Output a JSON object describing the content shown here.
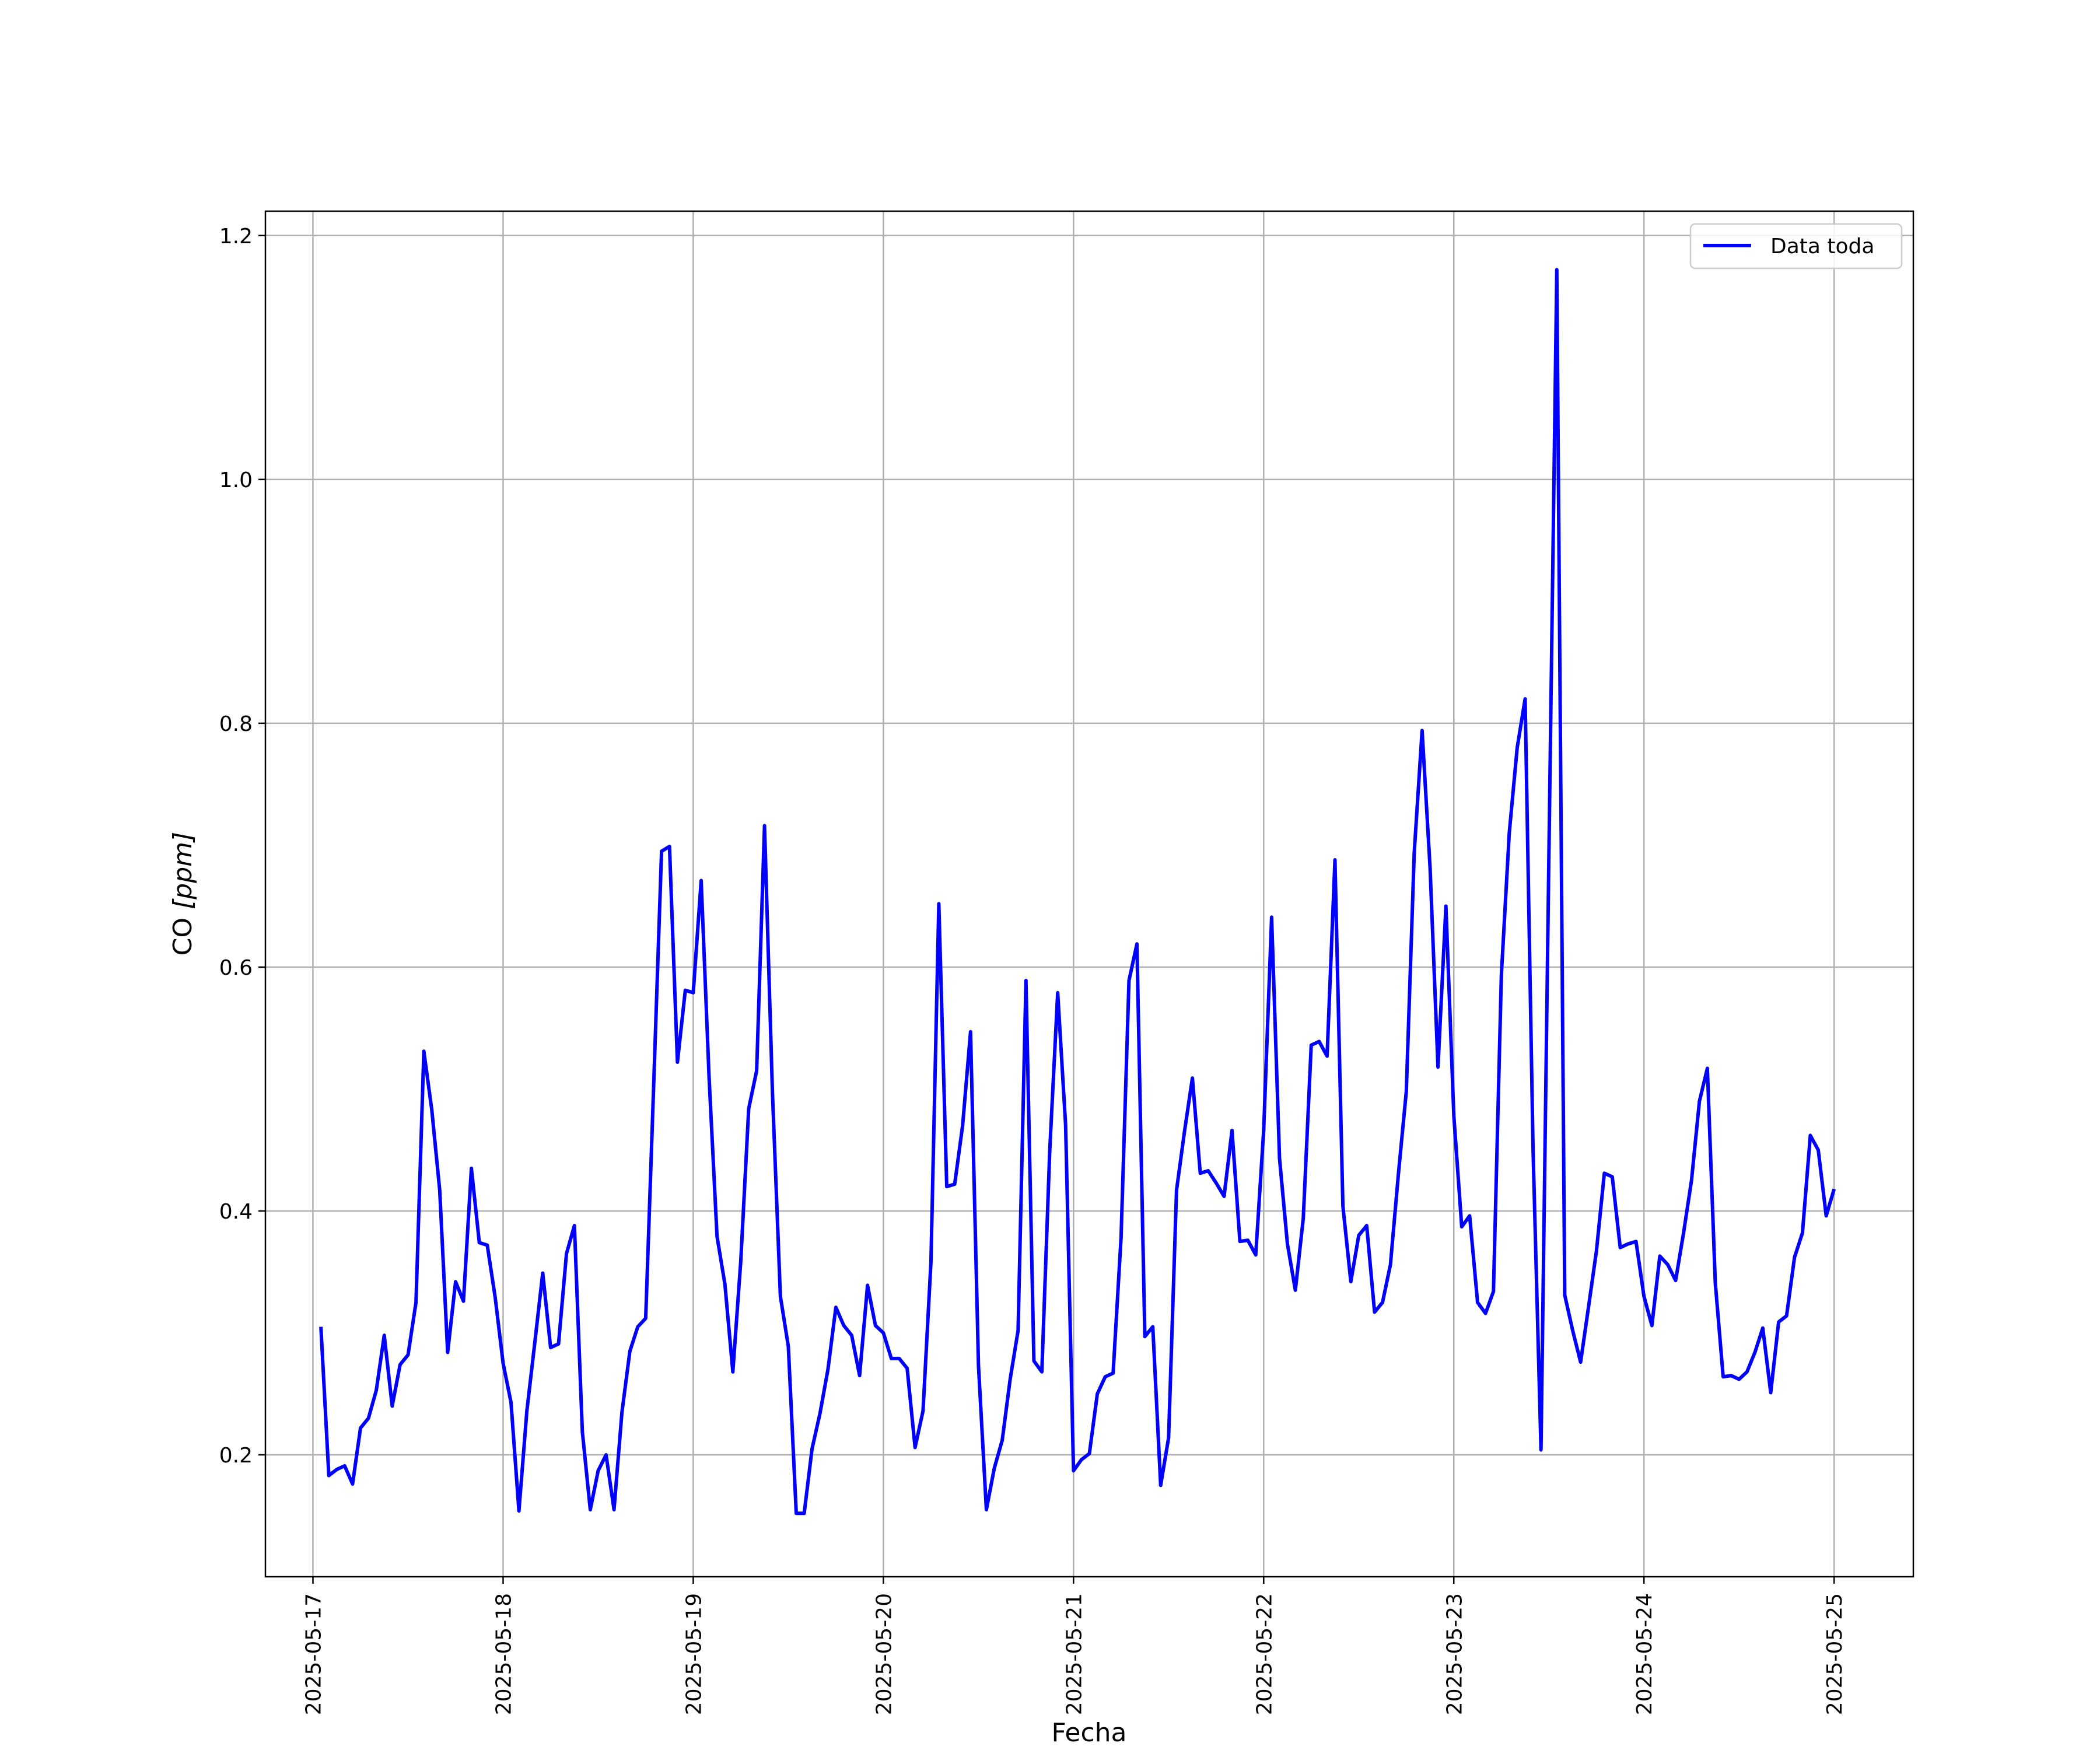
{
  "chart_data": {
    "type": "line",
    "title": "",
    "xlabel": "Fecha",
    "ylabel": "CO [ppm]",
    "ylabel_parts": {
      "plain": "CO ",
      "unit": "[ppm]"
    },
    "xlim": [
      "2025-05-16T18:00",
      "2025-05-25T10:00"
    ],
    "ylim": [
      0.1,
      1.22
    ],
    "x_ticks": [
      "2025-05-17",
      "2025-05-18",
      "2025-05-19",
      "2025-05-20",
      "2025-05-21",
      "2025-05-22",
      "2025-05-23",
      "2025-05-24",
      "2025-05-25"
    ],
    "y_ticks": [
      0.2,
      0.4,
      0.6,
      0.8,
      1.0,
      1.2
    ],
    "y_tick_labels": [
      "0.2",
      "0.4",
      "0.6",
      "0.8",
      "1.0",
      "1.2"
    ],
    "grid": true,
    "legend_position": "top-right",
    "series": [
      {
        "name": "Data toda",
        "color": "#0000ff",
        "x": [
          "2025-05-17T01:00",
          "2025-05-17T02:00",
          "2025-05-17T03:00",
          "2025-05-17T04:00",
          "2025-05-17T05:00",
          "2025-05-17T06:00",
          "2025-05-17T07:00",
          "2025-05-17T08:00",
          "2025-05-17T09:00",
          "2025-05-17T10:00",
          "2025-05-17T11:00",
          "2025-05-17T12:00",
          "2025-05-17T13:00",
          "2025-05-17T14:00",
          "2025-05-17T15:00",
          "2025-05-17T16:00",
          "2025-05-17T17:00",
          "2025-05-17T18:00",
          "2025-05-17T19:00",
          "2025-05-17T20:00",
          "2025-05-17T21:00",
          "2025-05-17T22:00",
          "2025-05-17T23:00",
          "2025-05-18T00:00",
          "2025-05-18T01:00",
          "2025-05-18T02:00",
          "2025-05-18T03:00",
          "2025-05-18T04:00",
          "2025-05-18T05:00",
          "2025-05-18T06:00",
          "2025-05-18T07:00",
          "2025-05-18T08:00",
          "2025-05-18T09:00",
          "2025-05-18T10:00",
          "2025-05-18T11:00",
          "2025-05-18T12:00",
          "2025-05-18T13:00",
          "2025-05-18T14:00",
          "2025-05-18T15:00",
          "2025-05-18T16:00",
          "2025-05-18T17:00",
          "2025-05-18T18:00",
          "2025-05-18T19:00",
          "2025-05-18T20:00",
          "2025-05-18T21:00",
          "2025-05-18T22:00",
          "2025-05-18T23:00",
          "2025-05-19T00:00",
          "2025-05-19T01:00",
          "2025-05-19T02:00",
          "2025-05-19T03:00",
          "2025-05-19T04:00",
          "2025-05-19T05:00",
          "2025-05-19T06:00",
          "2025-05-19T07:00",
          "2025-05-19T08:00",
          "2025-05-19T09:00",
          "2025-05-19T10:00",
          "2025-05-19T11:00",
          "2025-05-19T12:00",
          "2025-05-19T13:00",
          "2025-05-19T14:00",
          "2025-05-19T15:00",
          "2025-05-19T16:00",
          "2025-05-19T17:00",
          "2025-05-19T18:00",
          "2025-05-19T19:00",
          "2025-05-19T20:00",
          "2025-05-19T21:00",
          "2025-05-19T22:00",
          "2025-05-19T23:00",
          "2025-05-20T00:00",
          "2025-05-20T01:00",
          "2025-05-20T02:00",
          "2025-05-20T03:00",
          "2025-05-20T04:00",
          "2025-05-20T05:00",
          "2025-05-20T06:00",
          "2025-05-20T07:00",
          "2025-05-20T08:00",
          "2025-05-20T09:00",
          "2025-05-20T10:00",
          "2025-05-20T11:00",
          "2025-05-20T12:00",
          "2025-05-20T13:00",
          "2025-05-20T14:00",
          "2025-05-20T15:00",
          "2025-05-20T16:00",
          "2025-05-20T17:00",
          "2025-05-20T18:00",
          "2025-05-20T19:00",
          "2025-05-20T20:00",
          "2025-05-20T21:00",
          "2025-05-20T22:00",
          "2025-05-20T23:00",
          "2025-05-21T00:00",
          "2025-05-21T01:00",
          "2025-05-21T02:00",
          "2025-05-21T03:00",
          "2025-05-21T04:00",
          "2025-05-21T05:00",
          "2025-05-21T06:00",
          "2025-05-21T07:00",
          "2025-05-21T08:00",
          "2025-05-21T09:00",
          "2025-05-21T10:00",
          "2025-05-21T11:00",
          "2025-05-21T12:00",
          "2025-05-21T13:00",
          "2025-05-21T14:00",
          "2025-05-21T15:00",
          "2025-05-21T16:00",
          "2025-05-21T17:00",
          "2025-05-21T18:00",
          "2025-05-21T19:00",
          "2025-05-21T20:00",
          "2025-05-21T21:00",
          "2025-05-21T22:00",
          "2025-05-21T23:00",
          "2025-05-22T00:00",
          "2025-05-22T01:00",
          "2025-05-22T02:00",
          "2025-05-22T03:00",
          "2025-05-22T04:00",
          "2025-05-22T05:00",
          "2025-05-22T06:00",
          "2025-05-22T07:00",
          "2025-05-22T08:00",
          "2025-05-22T09:00",
          "2025-05-22T10:00",
          "2025-05-22T11:00",
          "2025-05-22T12:00",
          "2025-05-22T13:00",
          "2025-05-22T14:00",
          "2025-05-22T15:00",
          "2025-05-22T16:00",
          "2025-05-22T17:00",
          "2025-05-22T18:00",
          "2025-05-22T19:00",
          "2025-05-22T20:00",
          "2025-05-22T21:00",
          "2025-05-22T22:00",
          "2025-05-22T23:00",
          "2025-05-23T00:00",
          "2025-05-23T01:00",
          "2025-05-23T02:00",
          "2025-05-23T03:00",
          "2025-05-23T04:00",
          "2025-05-23T05:00",
          "2025-05-23T06:00",
          "2025-05-23T07:00",
          "2025-05-23T08:00",
          "2025-05-23T09:00",
          "2025-05-23T10:00",
          "2025-05-23T11:00",
          "2025-05-23T12:00",
          "2025-05-23T13:00",
          "2025-05-23T14:00",
          "2025-05-23T15:00",
          "2025-05-23T16:00",
          "2025-05-23T17:00",
          "2025-05-23T18:00",
          "2025-05-23T19:00",
          "2025-05-23T20:00",
          "2025-05-23T21:00",
          "2025-05-23T22:00",
          "2025-05-23T23:00",
          "2025-05-24T00:00",
          "2025-05-24T01:00",
          "2025-05-24T02:00",
          "2025-05-24T03:00",
          "2025-05-24T04:00",
          "2025-05-24T05:00",
          "2025-05-24T06:00",
          "2025-05-24T07:00",
          "2025-05-24T08:00",
          "2025-05-24T09:00",
          "2025-05-24T10:00",
          "2025-05-24T11:00",
          "2025-05-24T12:00",
          "2025-05-24T13:00",
          "2025-05-24T14:00",
          "2025-05-24T15:00",
          "2025-05-24T16:00",
          "2025-05-24T17:00",
          "2025-05-24T18:00",
          "2025-05-24T19:00",
          "2025-05-24T20:00",
          "2025-05-24T21:00",
          "2025-05-24T22:00",
          "2025-05-24T23:00",
          "2025-05-25T00:00"
        ],
        "y": [
          0.305,
          0.183,
          0.188,
          0.191,
          0.176,
          0.222,
          0.23,
          0.253,
          0.298,
          0.24,
          0.274,
          0.282,
          0.325,
          0.531,
          0.483,
          0.417,
          0.284,
          0.342,
          0.326,
          0.435,
          0.374,
          0.372,
          0.329,
          0.275,
          0.243,
          0.154,
          0.236,
          0.292,
          0.349,
          0.288,
          0.291,
          0.365,
          0.388,
          0.219,
          0.155,
          0.187,
          0.2,
          0.155,
          0.235,
          0.285,
          0.305,
          0.312,
          0.502,
          0.695,
          0.699,
          0.522,
          0.581,
          0.579,
          0.671,
          0.509,
          0.379,
          0.34,
          0.268,
          0.359,
          0.484,
          0.515,
          0.716,
          0.497,
          0.33,
          0.289,
          0.152,
          0.152,
          0.205,
          0.234,
          0.27,
          0.321,
          0.306,
          0.298,
          0.265,
          0.339,
          0.306,
          0.3,
          0.279,
          0.279,
          0.271,
          0.206,
          0.236,
          0.358,
          0.652,
          0.42,
          0.422,
          0.47,
          0.547,
          0.273,
          0.155,
          0.189,
          0.212,
          0.262,
          0.302,
          0.589,
          0.277,
          0.268,
          0.45,
          0.579,
          0.47,
          0.187,
          0.196,
          0.201,
          0.25,
          0.264,
          0.267,
          0.378,
          0.589,
          0.619,
          0.297,
          0.305,
          0.175,
          0.214,
          0.417,
          0.465,
          0.509,
          0.431,
          0.433,
          0.423,
          0.412,
          0.466,
          0.375,
          0.376,
          0.364,
          0.466,
          0.641,
          0.443,
          0.373,
          0.335,
          0.394,
          0.536,
          0.539,
          0.527,
          0.688,
          0.404,
          0.342,
          0.38,
          0.388,
          0.317,
          0.325,
          0.356,
          0.43,
          0.498,
          0.694,
          0.794,
          0.682,
          0.518,
          0.65,
          0.478,
          0.387,
          0.396,
          0.325,
          0.316,
          0.334,
          0.594,
          0.71,
          0.78,
          0.82,
          0.45,
          0.204,
          0.69,
          1.172,
          0.331,
          0.302,
          0.276,
          0.321,
          0.367,
          0.431,
          0.428,
          0.37,
          0.373,
          0.375,
          0.33,
          0.306,
          0.363,
          0.356,
          0.343,
          0.382,
          0.425,
          0.49,
          0.517,
          0.341,
          0.264,
          0.265,
          0.262,
          0.268,
          0.284,
          0.304,
          0.251,
          0.309,
          0.314,
          0.362,
          0.382,
          0.462,
          0.45,
          0.396,
          0.418
        ]
      }
    ]
  }
}
